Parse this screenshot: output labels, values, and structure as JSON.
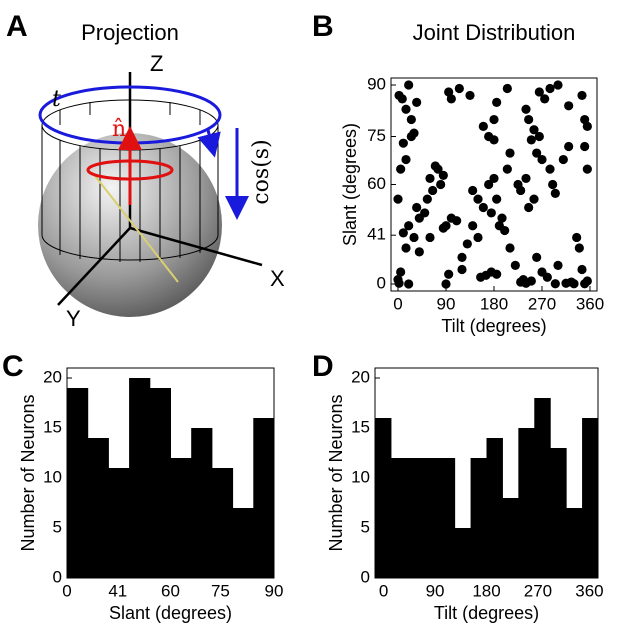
{
  "diagram": {
    "label": "A",
    "title": "Projection",
    "axis_z": "Z",
    "axis_x": "X",
    "axis_y": "Y",
    "angle_t": "t",
    "normal": "n̂",
    "cos_label": "cos(s)"
  },
  "chart_data": [
    {
      "type": "scatter",
      "label": "B",
      "title": "Joint Distribution",
      "xlabel": "Tilt (degrees)",
      "ylabel": "Slant (degrees)",
      "yscale": "cosine",
      "color": "#000000",
      "xlim": [
        0,
        360
      ],
      "xticks": [
        0,
        90,
        180,
        270,
        360
      ],
      "ylim": [
        0,
        90
      ],
      "yticks": [
        0,
        41,
        60,
        75,
        90
      ],
      "x": [
        2,
        8,
        20,
        25,
        15,
        35,
        95,
        115,
        100,
        135,
        185,
        180,
        205,
        240,
        245,
        265,
        275,
        285,
        300,
        320,
        345,
        350,
        355,
        10,
        25,
        30,
        5,
        15,
        70,
        75,
        80,
        60,
        85,
        55,
        65,
        50,
        40,
        35,
        20,
        30,
        15,
        10,
        0,
        5,
        0,
        2,
        20,
        90,
        90,
        100,
        110,
        85,
        120,
        130,
        150,
        155,
        165,
        175,
        185,
        190,
        200,
        210,
        220,
        230,
        240,
        250,
        235,
        260,
        270,
        280,
        295,
        300,
        315,
        325,
        335,
        340,
        350,
        355,
        345,
        330,
        140,
        150,
        160,
        170,
        175,
        185,
        180,
        195,
        205,
        210,
        225,
        230,
        240,
        245,
        255,
        260,
        270,
        265,
        285,
        290,
        295,
        310,
        320,
        350,
        355,
        170,
        180,
        160,
        250,
        255,
        140,
        120,
        95,
        60,
        40
      ],
      "values": [
        87,
        86,
        90,
        80,
        83,
        85,
        88,
        89,
        86,
        87,
        85,
        80,
        89,
        83,
        80,
        88,
        86,
        89,
        90,
        84,
        87,
        80,
        78,
        73,
        75,
        76,
        65,
        68,
        66,
        65,
        60,
        62,
        63,
        55,
        58,
        50,
        48,
        52,
        45,
        40,
        35,
        42,
        55,
        20,
        12,
        5,
        0,
        0,
        45,
        48,
        47,
        44,
        30,
        37,
        40,
        15,
        17,
        20,
        18,
        45,
        43,
        35,
        25,
        8,
        5,
        10,
        12,
        30,
        20,
        15,
        3,
        25,
        5,
        8,
        40,
        35,
        3,
        10,
        22,
        3,
        58,
        55,
        52,
        60,
        50,
        55,
        62,
        48,
        65,
        70,
        60,
        58,
        62,
        52,
        55,
        70,
        68,
        75,
        65,
        60,
        57,
        68,
        72,
        72,
        65,
        75,
        74,
        78,
        74,
        77,
        45,
        22,
        18,
        40,
        33
      ]
    },
    {
      "type": "histogram",
      "label": "C",
      "xlabel": "Slant (degrees)",
      "ylabel": "Number of Neurons",
      "xscale": "cosine",
      "color": "#000000",
      "bins": [
        0,
        25.84,
        36.87,
        45.57,
        53.13,
        60,
        66.42,
        72.54,
        78.46,
        84.26,
        90
      ],
      "values": [
        19,
        14,
        11,
        20,
        19,
        12,
        15,
        11,
        7,
        16
      ],
      "xlim": [
        0,
        90
      ],
      "xticks": [
        0,
        41,
        60,
        75,
        90
      ],
      "ylim": [
        0,
        20
      ],
      "yticks": [
        0,
        5,
        10,
        15,
        20
      ]
    },
    {
      "type": "histogram",
      "label": "D",
      "xlabel": "Tilt (degrees)",
      "ylabel": "Number of Neurons",
      "xscale": "linear",
      "color": "#000000",
      "bins": [
        -15,
        12.86,
        40.71,
        68.57,
        96.43,
        124.29,
        152.14,
        180,
        207.86,
        235.71,
        263.57,
        291.43,
        319.29,
        347.14,
        375
      ],
      "values": [
        16,
        12,
        12,
        12,
        12,
        5,
        12,
        14,
        8,
        15,
        18,
        13,
        7,
        16
      ],
      "xlim": [
        -15,
        375
      ],
      "xticks": [
        0,
        90,
        180,
        270,
        360
      ],
      "ylim": [
        0,
        20
      ],
      "yticks": [
        0,
        5,
        10,
        15,
        20
      ]
    }
  ]
}
